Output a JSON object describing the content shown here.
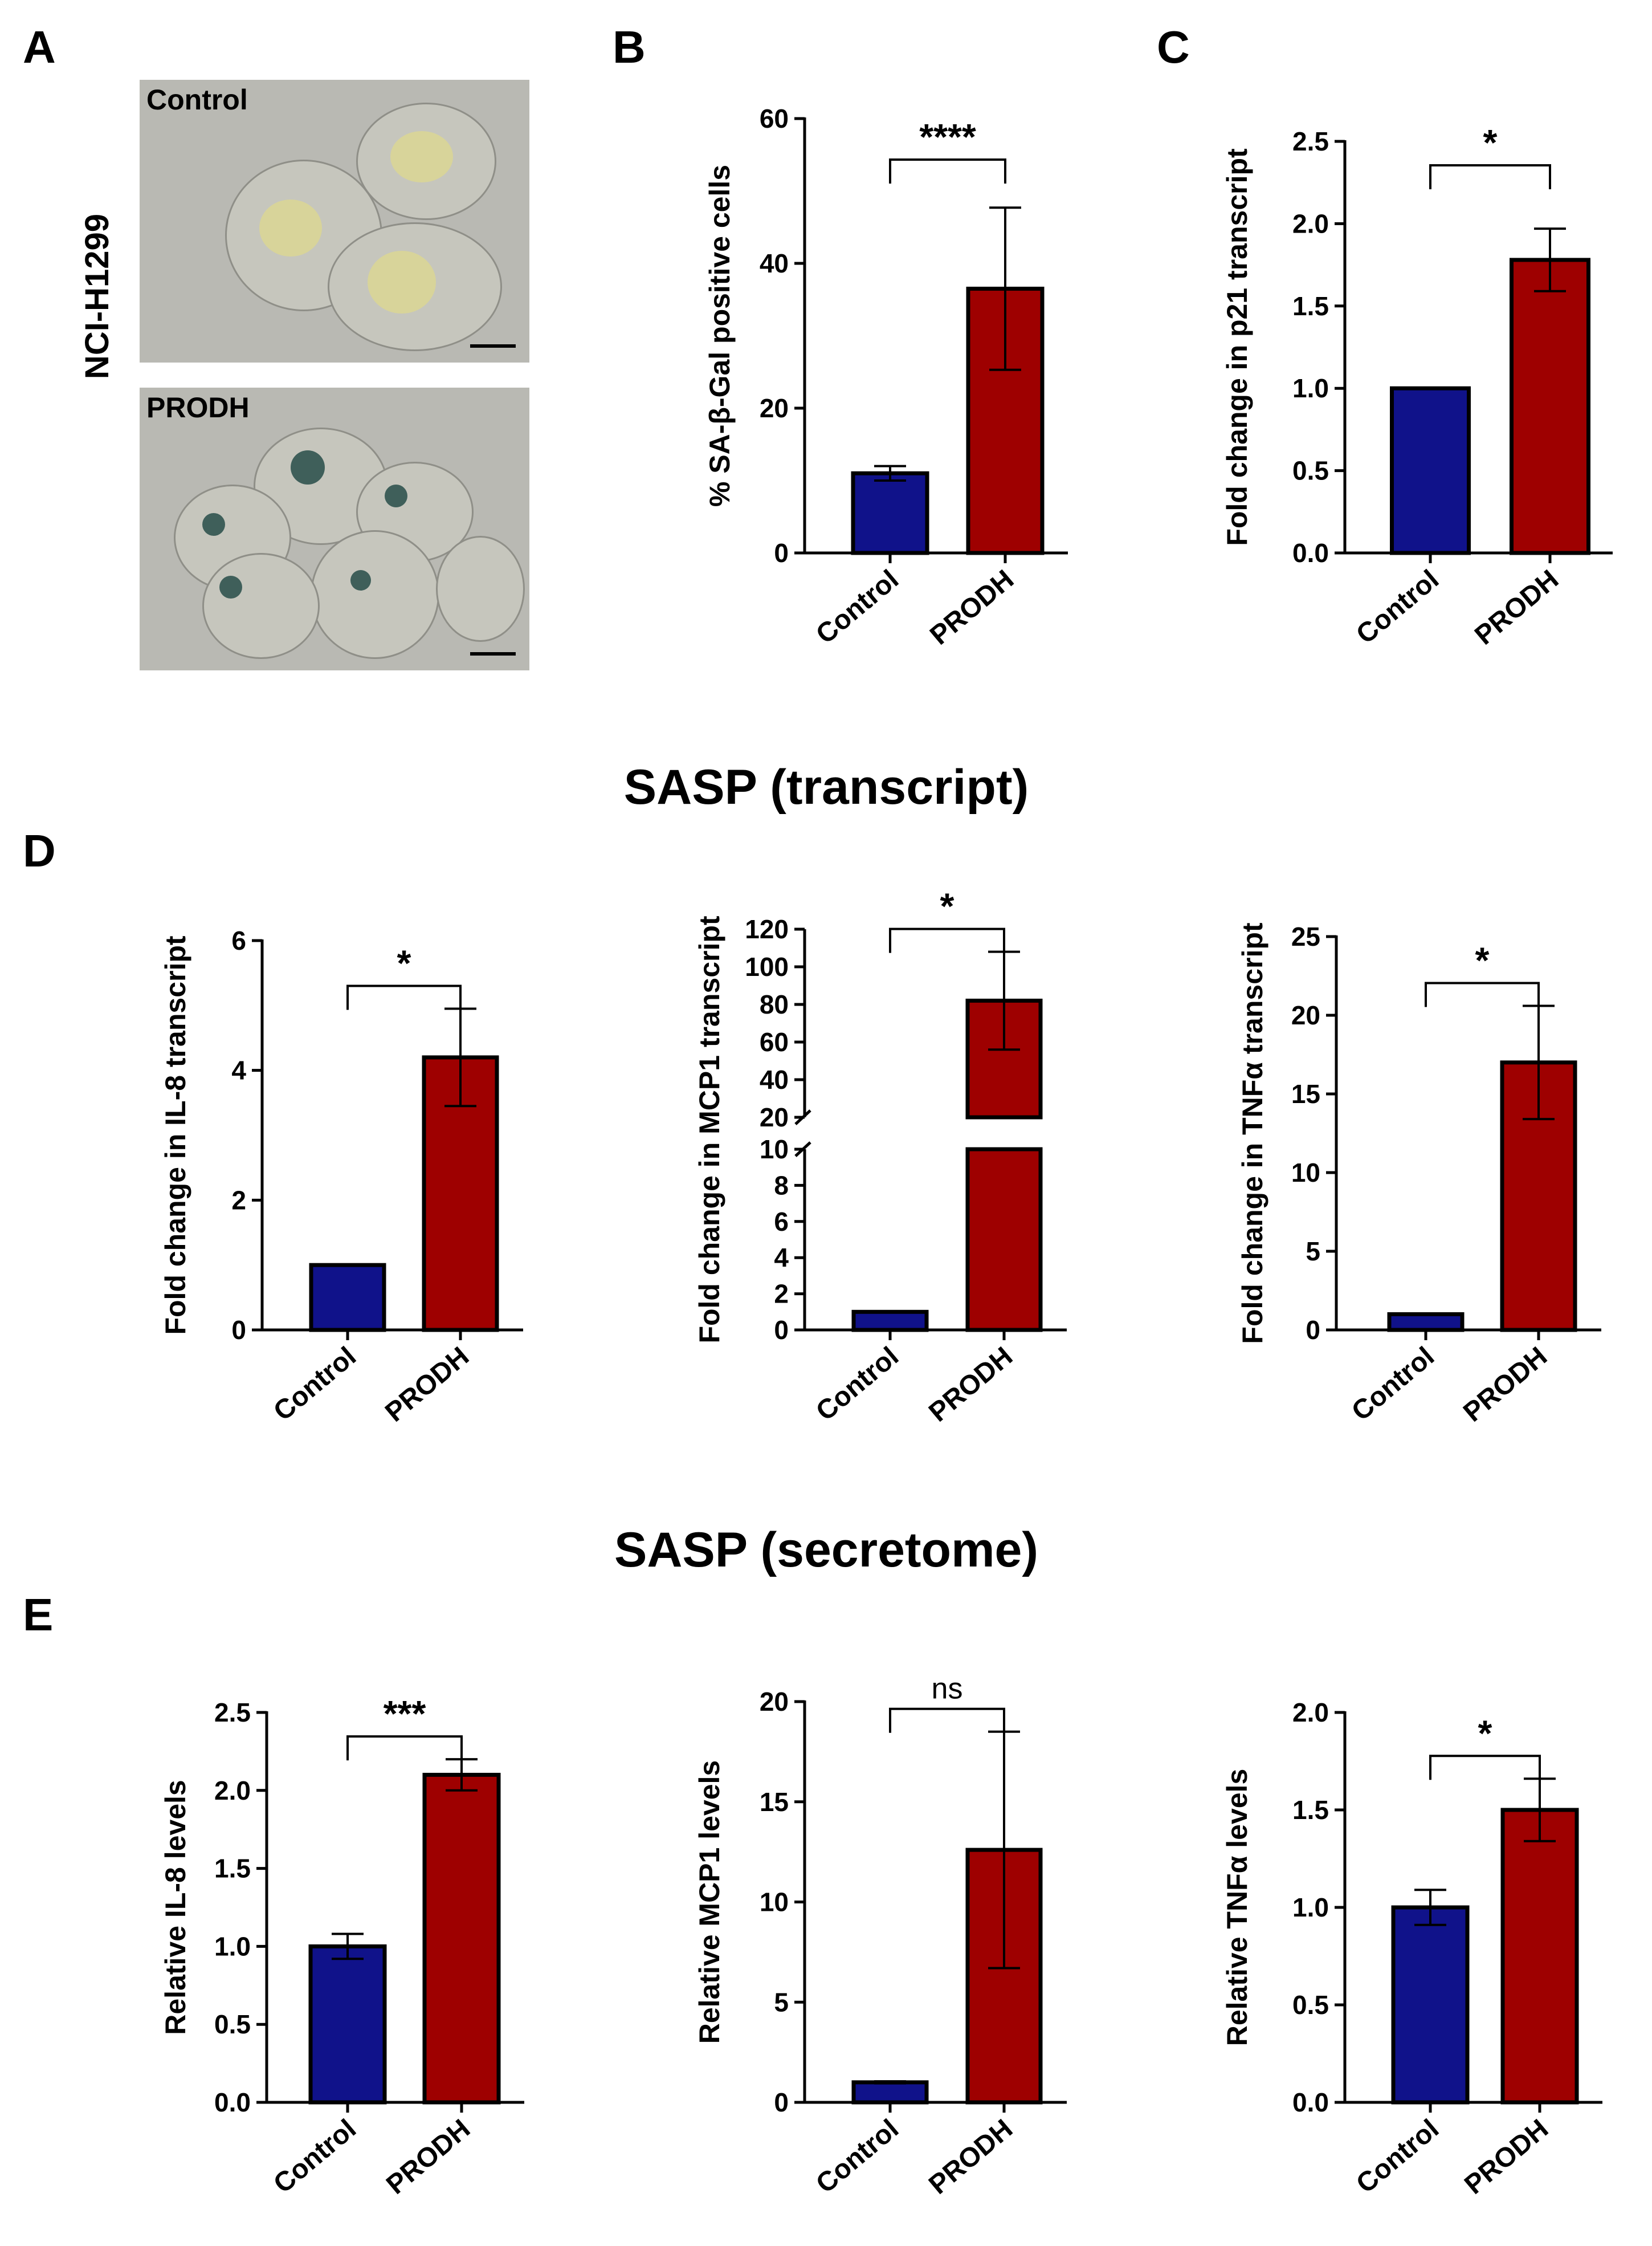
{
  "panel_letters": {
    "A": "A",
    "B": "B",
    "C": "C",
    "D": "D",
    "E": "E"
  },
  "section_titles": {
    "transcript": "SASP (transcript)",
    "secretome": "SASP (secretome)"
  },
  "panel_a": {
    "cell_line": "NCI-H1299",
    "top_label": "Control",
    "bottom_label": "PRODH"
  },
  "colors": {
    "control": "#10128a",
    "prodh": "#9e0000"
  },
  "chart_data": [
    {
      "id": "B",
      "type": "bar",
      "categories": [
        "Control",
        "PRODH"
      ],
      "values": [
        11,
        36.5
      ],
      "errors": [
        1,
        11.2
      ],
      "ylabel": "% SA-β-Gal positive cells",
      "ylim": [
        0,
        60
      ],
      "yticks": [
        0,
        20,
        40,
        60
      ],
      "tick_decimals": 0,
      "significance": "****"
    },
    {
      "id": "C",
      "type": "bar",
      "categories": [
        "Control",
        "PRODH"
      ],
      "values": [
        1.0,
        1.78
      ],
      "errors": [
        0,
        0.19
      ],
      "ylabel": "Fold change in p21 transcript",
      "ylim": [
        0,
        2.5
      ],
      "yticks": [
        0,
        0.5,
        1.0,
        1.5,
        2.0,
        2.5
      ],
      "tick_decimals": 1,
      "significance": "*"
    },
    {
      "id": "D1",
      "type": "bar",
      "categories": [
        "Control",
        "PRODH"
      ],
      "values": [
        1.0,
        4.2
      ],
      "errors": [
        0,
        0.75
      ],
      "ylabel": "Fold change in IL-8 transcript",
      "ylim": [
        0,
        6
      ],
      "yticks": [
        0,
        2,
        4,
        6
      ],
      "tick_decimals": 0,
      "significance": "*"
    },
    {
      "id": "D2",
      "type": "bar",
      "categories": [
        "Control",
        "PRODH"
      ],
      "values": [
        1.0,
        82
      ],
      "errors": [
        0,
        26
      ],
      "ylabel": "Fold change in MCP1 transcript",
      "axis_break": [
        10,
        20
      ],
      "yticks_lower": [
        0,
        2,
        4,
        6,
        8,
        10
      ],
      "yticks_upper": [
        20,
        40,
        60,
        80,
        100,
        120
      ],
      "tick_decimals": 0,
      "significance": "*"
    },
    {
      "id": "D3",
      "type": "bar",
      "categories": [
        "Control",
        "PRODH"
      ],
      "values": [
        1.0,
        17
      ],
      "errors": [
        0,
        3.6
      ],
      "ylabel": "Fold change in TNFα  transcript",
      "ylim": [
        0,
        25
      ],
      "yticks": [
        0,
        5,
        10,
        15,
        20,
        25
      ],
      "tick_decimals": 0,
      "significance": "*"
    },
    {
      "id": "E1",
      "type": "bar",
      "categories": [
        "Control",
        "PRODH"
      ],
      "values": [
        1.0,
        2.1
      ],
      "errors": [
        0.08,
        0.1
      ],
      "ylabel": "Relative IL-8 levels",
      "ylim": [
        0,
        2.5
      ],
      "yticks": [
        0,
        0.5,
        1.0,
        1.5,
        2.0,
        2.5
      ],
      "tick_decimals": 1,
      "significance": "***"
    },
    {
      "id": "E2",
      "type": "bar",
      "categories": [
        "Control",
        "PRODH"
      ],
      "values": [
        1.0,
        12.6
      ],
      "errors": [
        0.05,
        5.9
      ],
      "ylabel": "Relative MCP1 levels",
      "ylim": [
        0,
        20
      ],
      "yticks": [
        0,
        5,
        10,
        15,
        20
      ],
      "tick_decimals": 0,
      "significance": "ns"
    },
    {
      "id": "E3",
      "type": "bar",
      "categories": [
        "Control",
        "PRODH"
      ],
      "values": [
        1.0,
        1.5
      ],
      "errors": [
        0.09,
        0.16
      ],
      "ylabel": "Relative TNFα  levels",
      "ylim": [
        0,
        2.0
      ],
      "yticks": [
        0,
        0.5,
        1.0,
        1.5,
        2.0
      ],
      "tick_decimals": 1,
      "significance": "*"
    }
  ]
}
